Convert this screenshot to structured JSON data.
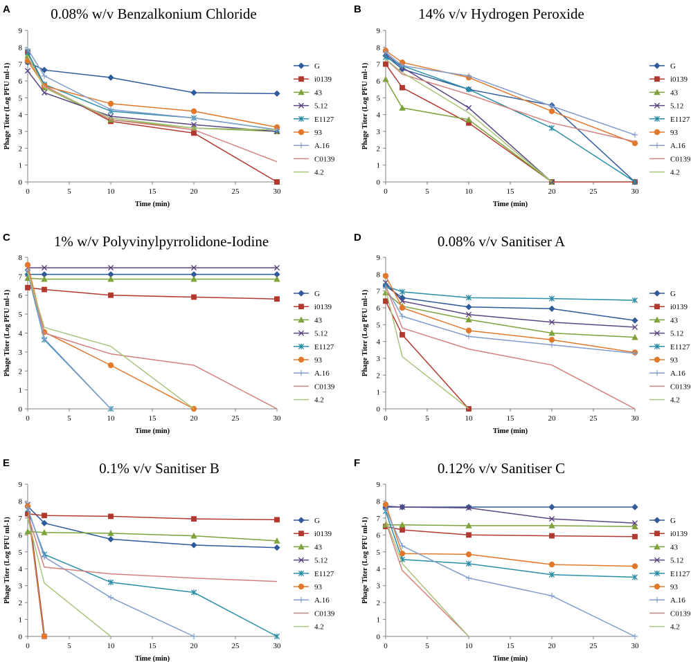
{
  "figure": {
    "series_names": [
      "G",
      "i0139",
      "43",
      "5.12",
      "E1127",
      "93",
      "A.16",
      "C0139",
      "4.2"
    ],
    "series_colors": [
      "#2E5B9C",
      "#B2382F",
      "#7DA33A",
      "#5B4483",
      "#2A8EA8",
      "#E2782A",
      "#7F9CCB",
      "#D4807C",
      "#A9C47C"
    ],
    "series_markers": [
      "diamond",
      "square",
      "triangle",
      "x",
      "asterisk",
      "circle",
      "plus",
      "none",
      "none"
    ]
  },
  "chart_data": [
    {
      "type": "line",
      "panel": "A",
      "title": "0.08% w/v Benzalkonium Chloride",
      "xlabel": "Time (min)",
      "ylabel": "Phage Titer (Log PFU ml-1)",
      "xlim": [
        0,
        30
      ],
      "ylim": [
        0,
        9
      ],
      "xticks": [
        0,
        5,
        10,
        15,
        20,
        25,
        30
      ],
      "yticks": [
        0,
        1,
        2,
        3,
        4,
        5,
        6,
        7,
        8,
        9
      ],
      "series": [
        {
          "name": "G",
          "x": [
            0,
            2,
            10,
            20,
            30
          ],
          "values": [
            7.1,
            6.65,
            6.2,
            5.3,
            5.25
          ]
        },
        {
          "name": "i0139",
          "x": [
            0,
            2,
            10,
            20,
            30
          ],
          "values": [
            7.7,
            5.7,
            3.6,
            2.9,
            0
          ]
        },
        {
          "name": "43",
          "x": [
            0,
            2,
            10,
            20,
            30
          ],
          "values": [
            7.5,
            5.6,
            3.7,
            3.2,
            3.0
          ]
        },
        {
          "name": "5.12",
          "x": [
            0,
            2,
            10,
            20,
            30
          ],
          "values": [
            6.6,
            5.3,
            3.9,
            3.4,
            3.0
          ]
        },
        {
          "name": "E1127",
          "x": [
            0,
            2,
            10,
            20,
            30
          ],
          "values": [
            7.7,
            5.8,
            4.2,
            3.8,
            3.1
          ]
        },
        {
          "name": "93",
          "x": [
            0,
            2,
            10,
            20,
            30
          ],
          "values": [
            7.2,
            5.7,
            4.65,
            4.2,
            3.25
          ]
        },
        {
          "name": "A.16",
          "x": [
            0,
            2,
            10,
            20,
            30
          ],
          "values": [
            7.9,
            6.3,
            4.3,
            3.8,
            3.1
          ]
        },
        {
          "name": "C0139",
          "x": [
            0,
            2,
            10,
            20,
            30
          ],
          "values": [
            7.4,
            5.7,
            3.7,
            3.1,
            1.2
          ]
        },
        {
          "name": "4.2",
          "x": [
            0,
            2,
            10,
            20,
            30
          ],
          "values": [
            7.5,
            5.6,
            3.8,
            3.2,
            3.1
          ]
        }
      ]
    },
    {
      "type": "line",
      "panel": "B",
      "title": "14% v/v Hydrogen Peroxide",
      "xlabel": "Time (min)",
      "ylabel": "Phage Titer (Log PFU ml-1)",
      "xlim": [
        0,
        30
      ],
      "ylim": [
        0,
        9
      ],
      "xticks": [
        0,
        5,
        10,
        15,
        20,
        25,
        30
      ],
      "yticks": [
        0,
        1,
        2,
        3,
        4,
        5,
        6,
        7,
        8,
        9
      ],
      "series": [
        {
          "name": "G",
          "x": [
            0,
            2,
            10,
            20,
            30
          ],
          "values": [
            7.5,
            6.7,
            5.5,
            4.55,
            0
          ]
        },
        {
          "name": "i0139",
          "x": [
            0,
            2,
            10,
            20,
            30
          ],
          "values": [
            7.0,
            5.6,
            3.5,
            0,
            0
          ]
        },
        {
          "name": "43",
          "x": [
            0,
            2,
            10,
            20
          ],
          "values": [
            6.1,
            4.4,
            3.7,
            0
          ]
        },
        {
          "name": "5.12",
          "x": [
            0,
            2,
            10,
            20
          ],
          "values": [
            7.6,
            6.8,
            4.4,
            0
          ]
        },
        {
          "name": "E1127",
          "x": [
            0,
            2,
            10,
            20,
            30
          ],
          "values": [
            7.4,
            6.9,
            5.5,
            3.2,
            0
          ]
        },
        {
          "name": "93",
          "x": [
            0,
            2,
            10,
            20,
            30
          ],
          "values": [
            7.8,
            7.1,
            6.2,
            4.2,
            2.3
          ]
        },
        {
          "name": "A.16",
          "x": [
            0,
            2,
            10,
            20,
            30
          ],
          "values": [
            7.7,
            6.9,
            6.3,
            4.5,
            2.8
          ]
        },
        {
          "name": "C0139",
          "x": [
            0,
            2,
            10,
            20,
            30
          ],
          "values": [
            7.3,
            6.4,
            5.2,
            3.5,
            2.4
          ]
        },
        {
          "name": "4.2",
          "x": [
            0,
            2,
            10,
            20
          ],
          "values": [
            7.3,
            6.5,
            4.1,
            0
          ]
        }
      ]
    },
    {
      "type": "line",
      "panel": "C",
      "title": "1% w/v Polyvinylpyrrolidone-Iodine",
      "xlabel": "Time (min)",
      "ylabel": "Phage Titer (Log PFU ml-1)",
      "xlim": [
        0,
        30
      ],
      "ylim": [
        0,
        8
      ],
      "xticks": [
        0,
        5,
        10,
        15,
        20,
        25,
        30
      ],
      "yticks": [
        0,
        1,
        2,
        3,
        4,
        5,
        6,
        7,
        8
      ],
      "series": [
        {
          "name": "G",
          "x": [
            0,
            2,
            10,
            20,
            30
          ],
          "values": [
            7.1,
            7.1,
            7.1,
            7.1,
            7.1
          ]
        },
        {
          "name": "i0139",
          "x": [
            0,
            2,
            10,
            20,
            30
          ],
          "values": [
            6.4,
            6.3,
            6.0,
            5.9,
            5.8
          ]
        },
        {
          "name": "43",
          "x": [
            0,
            2,
            10,
            20,
            30
          ],
          "values": [
            6.9,
            6.85,
            6.85,
            6.85,
            6.85
          ]
        },
        {
          "name": "5.12",
          "x": [
            0,
            2,
            10,
            20,
            30
          ],
          "values": [
            7.45,
            7.45,
            7.45,
            7.45,
            7.45
          ]
        },
        {
          "name": "E1127",
          "x": [
            0,
            2,
            10
          ],
          "values": [
            7.2,
            3.65,
            0
          ]
        },
        {
          "name": "93",
          "x": [
            0,
            2,
            10,
            20
          ],
          "values": [
            7.6,
            4.05,
            2.3,
            0
          ]
        },
        {
          "name": "A.16",
          "x": [
            0,
            2,
            10
          ],
          "values": [
            7.3,
            3.7,
            0
          ]
        },
        {
          "name": "C0139",
          "x": [
            0,
            2,
            10,
            20,
            30
          ],
          "values": [
            7.3,
            4.0,
            2.9,
            2.3,
            0
          ]
        },
        {
          "name": "4.2",
          "x": [
            0,
            2,
            10,
            20
          ],
          "values": [
            7.2,
            4.3,
            3.3,
            0
          ]
        }
      ]
    },
    {
      "type": "line",
      "panel": "D",
      "title": "0.08% v/v Sanitiser A",
      "xlabel": "Time (min)",
      "ylabel": "Phage Titer (Log PFU ml-1)",
      "xlim": [
        0,
        30
      ],
      "ylim": [
        0,
        9
      ],
      "xticks": [
        0,
        5,
        10,
        15,
        20,
        25,
        30
      ],
      "yticks": [
        0,
        1,
        2,
        3,
        4,
        5,
        6,
        7,
        8,
        9
      ],
      "series": [
        {
          "name": "G",
          "x": [
            0,
            2,
            10,
            20,
            30
          ],
          "values": [
            7.3,
            6.6,
            6.05,
            5.95,
            5.25
          ]
        },
        {
          "name": "i0139",
          "x": [
            0,
            2,
            10
          ],
          "values": [
            6.4,
            4.4,
            0
          ]
        },
        {
          "name": "43",
          "x": [
            0,
            2,
            10,
            20,
            30
          ],
          "values": [
            6.9,
            6.1,
            5.3,
            4.5,
            4.25
          ]
        },
        {
          "name": "5.12",
          "x": [
            0,
            2,
            10,
            20,
            30
          ],
          "values": [
            7.5,
            6.4,
            5.6,
            5.15,
            4.85
          ]
        },
        {
          "name": "E1127",
          "x": [
            0,
            2,
            10,
            20,
            30
          ],
          "values": [
            7.3,
            6.95,
            6.6,
            6.55,
            6.45
          ]
        },
        {
          "name": "93",
          "x": [
            0,
            2,
            10,
            20,
            30
          ],
          "values": [
            7.9,
            6.0,
            4.65,
            4.1,
            3.35
          ]
        },
        {
          "name": "A.16",
          "x": [
            0,
            2,
            10,
            20,
            30
          ],
          "values": [
            7.2,
            5.5,
            4.3,
            3.8,
            3.3
          ]
        },
        {
          "name": "C0139",
          "x": [
            0,
            2,
            10,
            20,
            30
          ],
          "values": [
            7.3,
            4.8,
            3.55,
            2.6,
            0
          ]
        },
        {
          "name": "4.2",
          "x": [
            0,
            2,
            10
          ],
          "values": [
            7.1,
            3.1,
            0
          ]
        }
      ]
    },
    {
      "type": "line",
      "panel": "E",
      "title": "0.1% v/v Sanitiser B",
      "xlabel": "Time (min)",
      "ylabel": "Phage Titer (Log PFU ml-1)",
      "xlim": [
        0,
        30
      ],
      "ylim": [
        0,
        9
      ],
      "xticks": [
        0,
        5,
        10,
        15,
        20,
        25,
        30
      ],
      "yticks": [
        0,
        1,
        2,
        3,
        4,
        5,
        6,
        7,
        8,
        9
      ],
      "series": [
        {
          "name": "G",
          "x": [
            0,
            2,
            10,
            20,
            30
          ],
          "values": [
            7.7,
            6.7,
            5.75,
            5.4,
            5.25
          ]
        },
        {
          "name": "i0139",
          "x": [
            0,
            2,
            10,
            20,
            30
          ],
          "values": [
            7.25,
            7.15,
            7.1,
            6.95,
            6.9
          ]
        },
        {
          "name": "43",
          "x": [
            0,
            2,
            10,
            20,
            30
          ],
          "values": [
            6.2,
            6.15,
            6.1,
            5.95,
            5.65
          ]
        },
        {
          "name": "5.12",
          "x": [
            0,
            2
          ],
          "values": [
            7.8,
            0
          ]
        },
        {
          "name": "E1127",
          "x": [
            0,
            2,
            10,
            20,
            30
          ],
          "values": [
            7.5,
            4.85,
            3.2,
            2.6,
            0
          ]
        },
        {
          "name": "93",
          "x": [
            0,
            2
          ],
          "values": [
            7.7,
            0
          ]
        },
        {
          "name": "A.16",
          "x": [
            0,
            2,
            10,
            20
          ],
          "values": [
            7.6,
            4.7,
            2.3,
            0
          ]
        },
        {
          "name": "C0139",
          "x": [
            0,
            2,
            10,
            20,
            30
          ],
          "values": [
            7.2,
            4.1,
            3.7,
            3.45,
            3.25
          ]
        },
        {
          "name": "4.2",
          "x": [
            0,
            2,
            10
          ],
          "values": [
            7.0,
            3.15,
            0
          ]
        }
      ]
    },
    {
      "type": "line",
      "panel": "F",
      "title": "0.12% v/v Sanitiser C",
      "xlabel": "Time (min)",
      "ylabel": "Phage Titer (Log PFU ml-1)",
      "xlim": [
        0,
        30
      ],
      "ylim": [
        0,
        9
      ],
      "xticks": [
        0,
        5,
        10,
        15,
        20,
        25,
        30
      ],
      "yticks": [
        0,
        1,
        2,
        3,
        4,
        5,
        6,
        7,
        8,
        9
      ],
      "series": [
        {
          "name": "G",
          "x": [
            0,
            2,
            10,
            20,
            30
          ],
          "values": [
            7.65,
            7.65,
            7.65,
            7.65,
            7.65
          ]
        },
        {
          "name": "i0139",
          "x": [
            0,
            2,
            10,
            20,
            30
          ],
          "values": [
            6.5,
            6.3,
            6.0,
            5.95,
            5.9
          ]
        },
        {
          "name": "43",
          "x": [
            0,
            2,
            10,
            20,
            30
          ],
          "values": [
            6.6,
            6.6,
            6.55,
            6.55,
            6.5
          ]
        },
        {
          "name": "5.12",
          "x": [
            0,
            2,
            10,
            20,
            30
          ],
          "values": [
            7.7,
            7.65,
            7.6,
            6.95,
            6.7
          ]
        },
        {
          "name": "E1127",
          "x": [
            0,
            2,
            10,
            20,
            30
          ],
          "values": [
            7.4,
            4.55,
            4.3,
            3.65,
            3.5
          ]
        },
        {
          "name": "93",
          "x": [
            0,
            2,
            10,
            20,
            30
          ],
          "values": [
            7.8,
            4.9,
            4.85,
            4.25,
            4.15
          ]
        },
        {
          "name": "A.16",
          "x": [
            0,
            2,
            10,
            20,
            30
          ],
          "values": [
            7.5,
            5.35,
            3.45,
            2.4,
            0
          ]
        },
        {
          "name": "C0139",
          "x": [
            0,
            2,
            10
          ],
          "values": [
            6.8,
            3.9,
            0
          ]
        },
        {
          "name": "4.2",
          "x": [
            0,
            2,
            10
          ],
          "values": [
            6.9,
            4.3,
            0
          ]
        }
      ]
    }
  ]
}
